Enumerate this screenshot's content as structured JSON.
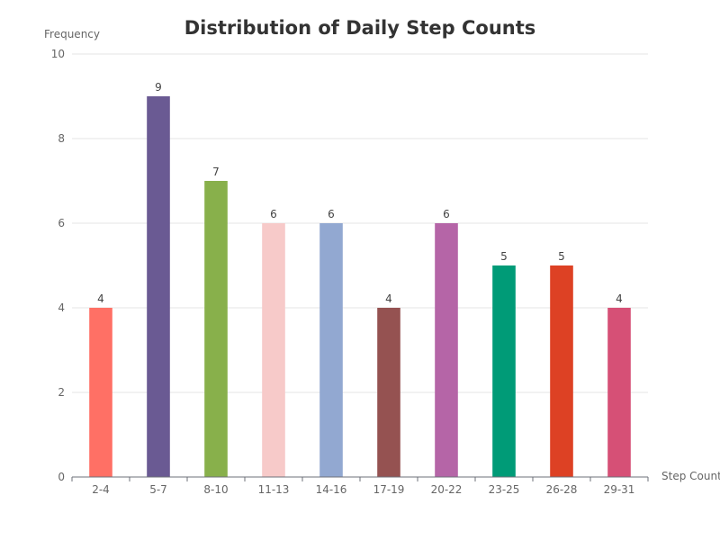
{
  "chart_data": {
    "type": "bar",
    "title": "Distribution of Daily Step Counts",
    "xlabel": "Step Count",
    "ylabel": "Frequency",
    "ylim": [
      0,
      10
    ],
    "yticks": [
      "0",
      "2",
      "4",
      "6",
      "8",
      "10"
    ],
    "grid": true,
    "categories": [
      "2-4",
      "5-7",
      "8-10",
      "11-13",
      "14-16",
      "17-19",
      "20-22",
      "23-25",
      "26-28",
      "29-31"
    ],
    "values": [
      4,
      9,
      7,
      6,
      6,
      4,
      6,
      5,
      5,
      4
    ],
    "colors": [
      "#ff7065",
      "#6a5a93",
      "#88b04b",
      "#f7cac9",
      "#92a8d1",
      "#955251",
      "#b565a7",
      "#009b77",
      "#dd4124",
      "#d65076"
    ]
  }
}
